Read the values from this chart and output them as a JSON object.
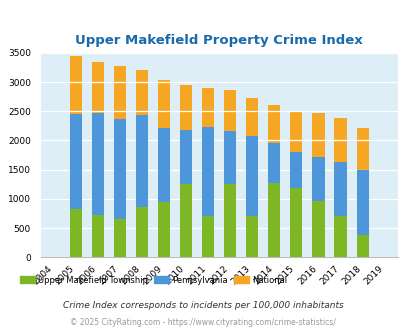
{
  "title": "Upper Makefield Property Crime Index",
  "years": [
    2004,
    2005,
    2006,
    2007,
    2008,
    2009,
    2010,
    2011,
    2012,
    2013,
    2014,
    2015,
    2016,
    2017,
    2018,
    2019
  ],
  "upper_makefield": [
    0,
    820,
    720,
    650,
    860,
    940,
    1250,
    700,
    1250,
    700,
    1270,
    1190,
    970,
    700,
    380,
    0
  ],
  "pennsylvania": [
    0,
    2460,
    2470,
    2370,
    2440,
    2210,
    2180,
    2230,
    2160,
    2070,
    1950,
    1800,
    1720,
    1640,
    1490,
    0
  ],
  "national": [
    0,
    3440,
    3350,
    3270,
    3210,
    3040,
    2950,
    2900,
    2860,
    2730,
    2600,
    2500,
    2470,
    2380,
    2210,
    0
  ],
  "color_township": "#7db726",
  "color_pa": "#4d96d9",
  "color_national": "#f5a623",
  "bg_color": "#ddeef7",
  "ylim": [
    0,
    3500
  ],
  "ylabel_step": 500,
  "footnote1": "Crime Index corresponds to incidents per 100,000 inhabitants",
  "footnote2": "© 2025 CityRating.com - https://www.cityrating.com/crime-statistics/",
  "legend_labels": [
    "Upper Makefield Township",
    "Pennsylvania",
    "National"
  ]
}
